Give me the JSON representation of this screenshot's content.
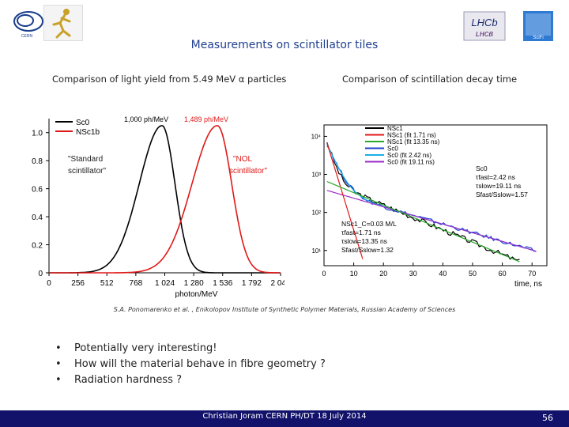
{
  "slide": {
    "title": "Measurements on scintillator tiles",
    "left_subtitle": "Comparison of light yield from 5.49 MeV α particles",
    "right_subtitle": "Comparison of scintillation decay time",
    "credit": "S.A. Ponomarenko et al. , Enikolopov Institute of Synthetic Polymer Materials, Russian Academy of Sciences",
    "bullets": [
      "Potentially very interesting!",
      "How will the material behave in fibre geometry ?",
      "Radiation hardness ?"
    ],
    "bullet_marker": "•",
    "footer": "Christian Joram   CERN   PH/DT     18 July 2014",
    "page_number": "56"
  },
  "logos": {
    "cern": "CERN",
    "lhcb": "LHCb",
    "scifi": "SciFi"
  },
  "chart_data": [
    {
      "type": "line",
      "xlabel": "photon/MeV",
      "xlim": [
        0,
        2048
      ],
      "ylim": [
        0,
        1.1
      ],
      "x_ticks": [
        "0",
        "256",
        "512",
        "768",
        "1 024",
        "1 280",
        "1 536",
        "1 792",
        "2 048"
      ],
      "y_ticks": [
        "0",
        "0.2",
        "0.4",
        "0.6",
        "0.8",
        "1.0"
      ],
      "legend": [
        "Sc0",
        "NSc1b"
      ],
      "annotations": {
        "peak_black": "1,000 ph/MeV",
        "peak_red": "1,489 ph/MeV",
        "standard_label": "\"Standard scintillator\"",
        "nol_label": "\"NOL scintillator\""
      },
      "series": [
        {
          "name": "Sc0",
          "color": "#000000",
          "peak": 1000,
          "width": 135
        },
        {
          "name": "NSc1b",
          "color": "#e01818",
          "peak": 1489,
          "width": 150
        }
      ]
    },
    {
      "type": "line",
      "xlabel": "time, ns",
      "xlim": [
        0,
        75
      ],
      "y_ticks": [
        "10¹",
        "10²",
        "10³",
        "10⁴"
      ],
      "x_ticks": [
        "0",
        "10",
        "20",
        "30",
        "40",
        "50",
        "60",
        "70"
      ],
      "legend": [
        "NSc1",
        "NSc1 (fit 1.71 ns)",
        "NSc1 (fit 13.35 ns)",
        "Sc0",
        "Sc0 (fit 2.42 ns)",
        "Sc0 (fit 19.11 ns)"
      ],
      "legend_colors": [
        "#000000",
        "#e01818",
        "#2aaa2a",
        "#1f3fd0",
        "#19b0e6",
        "#9b2cc8"
      ],
      "sc0_box": [
        "Sc0",
        "τfast=2.42 ns",
        "τslow=19.11 ns",
        "Sfast/Sslow=1.57"
      ],
      "nsc1_box": [
        "NSc1_C=0.03 M/L",
        "τfast=1.71 ns",
        "τslow=13.35 ns",
        "Sfast/Sslow=1.32"
      ]
    }
  ]
}
